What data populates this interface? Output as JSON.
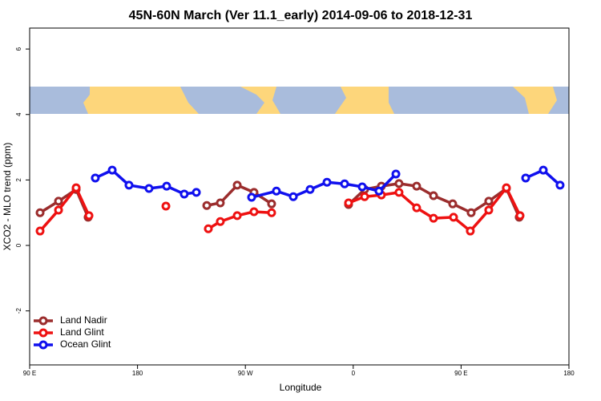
{
  "chart_data": {
    "type": "line",
    "title": "45N-60N March (Ver 11.1_early)   2014-09-06 to 2018-12-31",
    "x_label": "Longitude",
    "y_label": "XCO2 - MLO trend (ppm)",
    "xlim": [
      90,
      540
    ],
    "ylim": [
      -3.65,
      6.64
    ],
    "xticks": [
      {
        "value": 90,
        "label": "90 E"
      },
      {
        "value": 180,
        "label": "180"
      },
      {
        "value": 270,
        "label": "90 W"
      },
      {
        "value": 360,
        "label": "0"
      },
      {
        "value": 450,
        "label": "90 E"
      },
      {
        "value": 540,
        "label": "180"
      }
    ],
    "yticks": [
      -2,
      0,
      2,
      4,
      6
    ],
    "legend": "bottom-left",
    "series": [
      {
        "name": "Land Nadir",
        "color": "#9b2d2d",
        "x": [
          98.7,
          114.1,
          128.8,
          138.8,
          null,
          237.8,
          249.1,
          263.2,
          277.2,
          291.9,
          null,
          356.1,
          369.5,
          383.5,
          398.2,
          412.9,
          427.0,
          443.0,
          458.4,
          473.1,
          487.8,
          498.5
        ],
        "values": [
          1.0,
          1.35,
          1.71,
          0.86,
          null,
          1.22,
          1.3,
          1.84,
          1.62,
          1.27,
          null,
          1.25,
          1.71,
          1.81,
          1.89,
          1.81,
          1.52,
          1.27,
          1.0,
          1.35,
          1.74,
          0.86
        ]
      },
      {
        "name": "Land Glint",
        "color": "#ee1111",
        "x": [
          98.7,
          114.1,
          128.8,
          139.5,
          null,
          203.7,
          null,
          239.1,
          249.1,
          263.2,
          277.2,
          291.9,
          null,
          356.1,
          369.5,
          383.5,
          398.2,
          412.9,
          427.0,
          443.7,
          457.7,
          473.1,
          487.8,
          499.2
        ],
        "values": [
          0.44,
          1.08,
          1.76,
          0.91,
          null,
          1.2,
          null,
          0.51,
          0.73,
          0.91,
          1.03,
          1.0,
          null,
          1.3,
          1.49,
          1.54,
          1.62,
          1.15,
          0.83,
          0.86,
          0.44,
          1.08,
          1.76,
          0.91
        ]
      },
      {
        "name": "Ocean Glint",
        "color": "#1010ee",
        "x": [
          144.8,
          158.9,
          172.9,
          189.6,
          204.3,
          219.0,
          229.1,
          null,
          275.2,
          295.9,
          310.0,
          324.0,
          338.1,
          352.8,
          367.5,
          381.5,
          395.6,
          null,
          503.9,
          518.6,
          532.6
        ],
        "values": [
          2.06,
          2.3,
          1.84,
          1.74,
          1.81,
          1.57,
          1.62,
          null,
          1.47,
          1.66,
          1.49,
          1.71,
          1.93,
          1.88,
          1.79,
          1.66,
          2.18,
          null,
          2.06,
          2.3,
          1.84
        ]
      }
    ]
  }
}
